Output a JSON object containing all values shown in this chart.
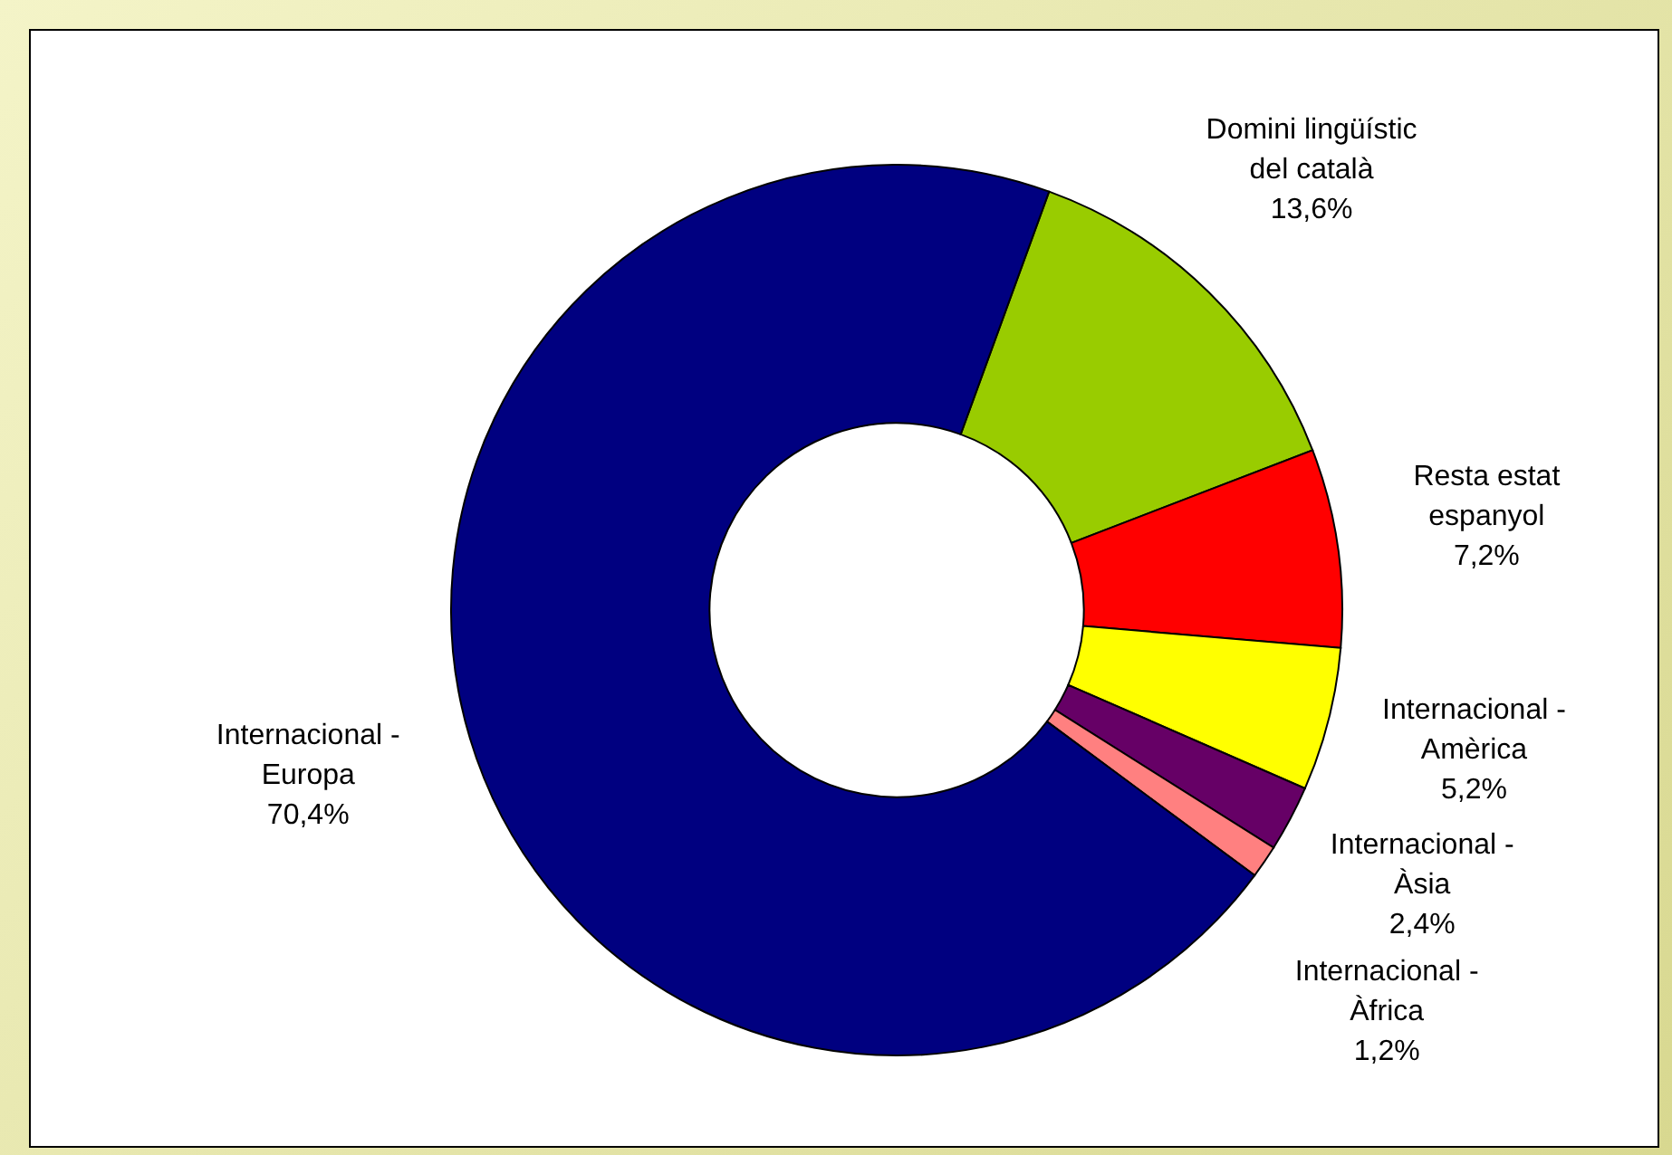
{
  "chart_data": {
    "type": "donut",
    "categories": [
      "Domini lingüístic del català",
      "Resta estat espanyol",
      "Internacional - Amèrica",
      "Internacional - Àsia",
      "Internacional - Àfrica",
      "Internacional - Europa"
    ],
    "values": [
      13.6,
      7.2,
      5.2,
      2.4,
      1.2,
      70.4
    ],
    "colors": [
      "#99cc00",
      "#ff0000",
      "#ffff00",
      "#660066",
      "#ff8080",
      "#000080"
    ],
    "value_labels": [
      "13,6%",
      "7,2%",
      "5,2%",
      "2,4%",
      "1,2%",
      "70,4%"
    ],
    "legend": false
  }
}
